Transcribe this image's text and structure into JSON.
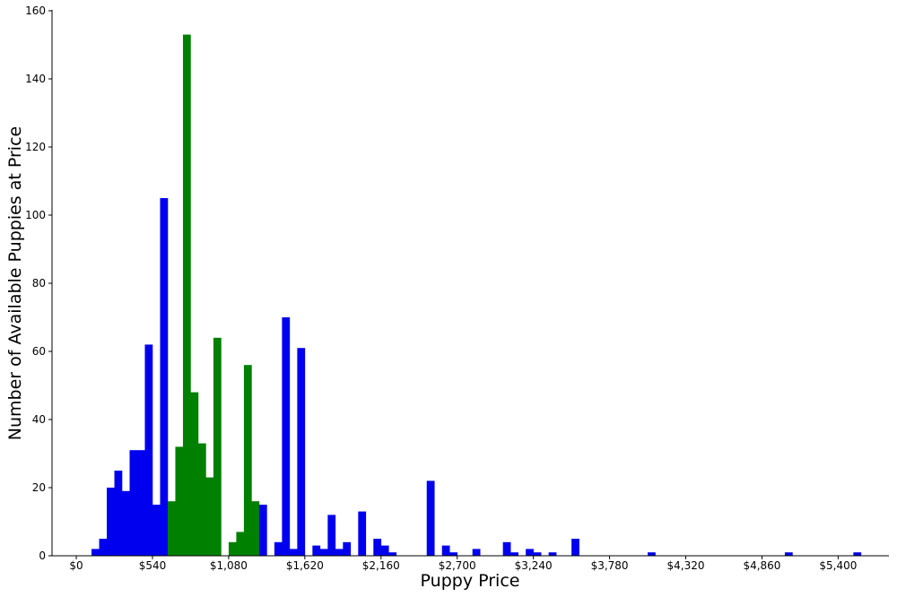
{
  "chart_data": {
    "type": "bar",
    "xlabel": "Puppy Price",
    "ylabel": "Number of Available Puppies at Price",
    "title": "",
    "bin_width": 54,
    "xlim": [
      -172,
      5760
    ],
    "ylim": [
      0,
      160
    ],
    "x_ticks": [
      {
        "value": 0,
        "label": "$0"
      },
      {
        "value": 540,
        "label": "$540"
      },
      {
        "value": 1080,
        "label": "$1,080"
      },
      {
        "value": 1620,
        "label": "$1,620"
      },
      {
        "value": 2160,
        "label": "$2,160"
      },
      {
        "value": 2700,
        "label": "$2,700"
      },
      {
        "value": 3240,
        "label": "$3,240"
      },
      {
        "value": 3780,
        "label": "$3,780"
      },
      {
        "value": 4320,
        "label": "$4,320"
      },
      {
        "value": 4860,
        "label": "$4,860"
      },
      {
        "value": 5400,
        "label": "$5,400"
      }
    ],
    "y_ticks": [
      {
        "value": 0,
        "label": "0"
      },
      {
        "value": 20,
        "label": "20"
      },
      {
        "value": 40,
        "label": "40"
      },
      {
        "value": 60,
        "label": "60"
      },
      {
        "value": 80,
        "label": "80"
      },
      {
        "value": 100,
        "label": "100"
      },
      {
        "value": 120,
        "label": "120"
      },
      {
        "value": 140,
        "label": "140"
      },
      {
        "value": 160,
        "label": "160"
      }
    ],
    "colors": {
      "blue": "#0000ee",
      "green": "#008000"
    },
    "bars": [
      {
        "x": 108,
        "value": 2,
        "color": "blue"
      },
      {
        "x": 162,
        "value": 5,
        "color": "blue"
      },
      {
        "x": 216,
        "value": 20,
        "color": "blue"
      },
      {
        "x": 270,
        "value": 25,
        "color": "blue"
      },
      {
        "x": 324,
        "value": 19,
        "color": "blue"
      },
      {
        "x": 378,
        "value": 31,
        "color": "blue"
      },
      {
        "x": 432,
        "value": 31,
        "color": "blue"
      },
      {
        "x": 486,
        "value": 62,
        "color": "blue"
      },
      {
        "x": 540,
        "value": 15,
        "color": "blue"
      },
      {
        "x": 594,
        "value": 105,
        "color": "blue"
      },
      {
        "x": 648,
        "value": 16,
        "color": "green"
      },
      {
        "x": 702,
        "value": 32,
        "color": "green"
      },
      {
        "x": 756,
        "value": 153,
        "color": "green"
      },
      {
        "x": 810,
        "value": 48,
        "color": "green"
      },
      {
        "x": 864,
        "value": 33,
        "color": "green"
      },
      {
        "x": 918,
        "value": 23,
        "color": "green"
      },
      {
        "x": 972,
        "value": 64,
        "color": "green"
      },
      {
        "x": 1080,
        "value": 4,
        "color": "green"
      },
      {
        "x": 1134,
        "value": 7,
        "color": "green"
      },
      {
        "x": 1188,
        "value": 56,
        "color": "green"
      },
      {
        "x": 1242,
        "value": 16,
        "color": "green"
      },
      {
        "x": 1296,
        "value": 15,
        "color": "blue"
      },
      {
        "x": 1404,
        "value": 4,
        "color": "blue"
      },
      {
        "x": 1458,
        "value": 70,
        "color": "blue"
      },
      {
        "x": 1512,
        "value": 2,
        "color": "blue"
      },
      {
        "x": 1566,
        "value": 61,
        "color": "blue"
      },
      {
        "x": 1674,
        "value": 3,
        "color": "blue"
      },
      {
        "x": 1728,
        "value": 2,
        "color": "blue"
      },
      {
        "x": 1782,
        "value": 12,
        "color": "blue"
      },
      {
        "x": 1836,
        "value": 2,
        "color": "blue"
      },
      {
        "x": 1890,
        "value": 4,
        "color": "blue"
      },
      {
        "x": 1998,
        "value": 13,
        "color": "blue"
      },
      {
        "x": 2106,
        "value": 5,
        "color": "blue"
      },
      {
        "x": 2160,
        "value": 3,
        "color": "blue"
      },
      {
        "x": 2214,
        "value": 1,
        "color": "blue"
      },
      {
        "x": 2484,
        "value": 22,
        "color": "blue"
      },
      {
        "x": 2592,
        "value": 3,
        "color": "blue"
      },
      {
        "x": 2646,
        "value": 1,
        "color": "blue"
      },
      {
        "x": 2808,
        "value": 2,
        "color": "blue"
      },
      {
        "x": 3024,
        "value": 4,
        "color": "blue"
      },
      {
        "x": 3078,
        "value": 1,
        "color": "blue"
      },
      {
        "x": 3186,
        "value": 2,
        "color": "blue"
      },
      {
        "x": 3240,
        "value": 1,
        "color": "blue"
      },
      {
        "x": 3348,
        "value": 1,
        "color": "blue"
      },
      {
        "x": 3510,
        "value": 5,
        "color": "blue"
      },
      {
        "x": 4050,
        "value": 1,
        "color": "blue"
      },
      {
        "x": 5022,
        "value": 1,
        "color": "blue"
      },
      {
        "x": 5508,
        "value": 1,
        "color": "blue"
      }
    ]
  }
}
